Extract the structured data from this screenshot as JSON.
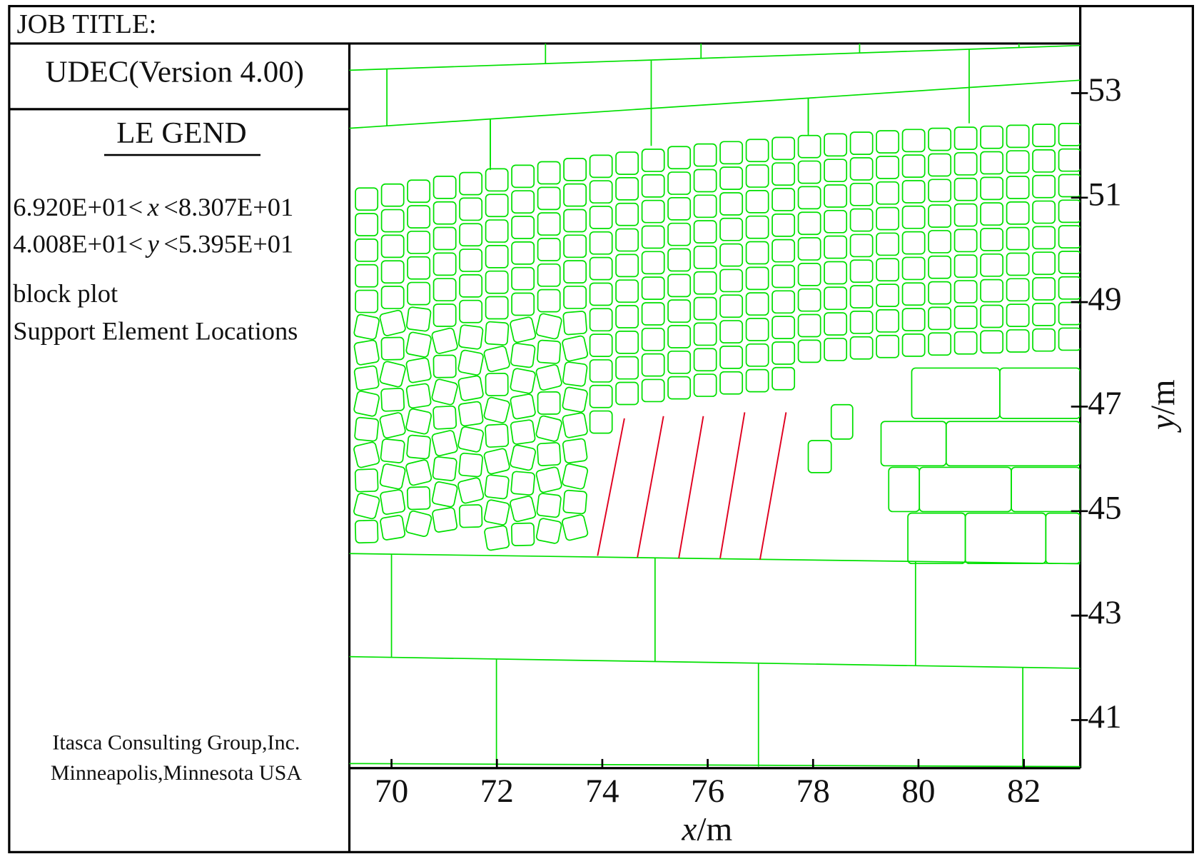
{
  "header": {
    "job_title": "JOB TITLE:"
  },
  "legend": {
    "program": "UDEC(Version 4.00)",
    "heading": "LE GEND",
    "x_range": {
      "low": "6.920E+01<",
      "var": "x",
      "high": "<8.307E+01"
    },
    "y_range": {
      "low": "4.008E+01<",
      "var": "y",
      "high": "<5.395E+01"
    },
    "items": [
      {
        "label": "block plot",
        "color": "#80ee80"
      },
      {
        "label": "Support Element Locations",
        "color": "#d01040"
      }
    ],
    "credit": [
      "Itasca Consulting Group,Inc.",
      "Minneapolis,Minnesota USA"
    ]
  },
  "chart_data": {
    "type": "block",
    "x_label_var": "x",
    "x_label_unit": "/m",
    "y_label_var": "y",
    "y_label_unit": "/m",
    "xlim": [
      69.2,
      83.07
    ],
    "ylim": [
      40.08,
      53.95
    ],
    "xticks": [
      70,
      72,
      74,
      76,
      78,
      80,
      82
    ],
    "yticks": [
      41,
      43,
      45,
      47,
      49,
      51,
      53
    ],
    "block_color": "#00e000",
    "support_color": "#e00020"
  }
}
